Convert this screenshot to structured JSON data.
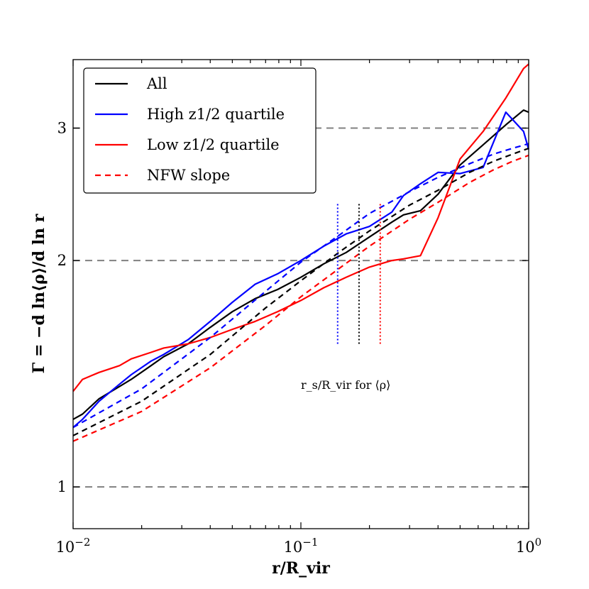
{
  "chart_data": {
    "type": "line",
    "xscale": "log",
    "yscale": "log",
    "xlim": [
      0.01,
      1.0
    ],
    "ylim": [
      0.88,
      3.7
    ],
    "xlabel": "r/R_vir",
    "ylabel": "Γ = −d ln⟨ρ⟩/d ln r",
    "x_ticks": [
      {
        "value": 0.01,
        "base": "10",
        "exp": "−2"
      },
      {
        "value": 0.1,
        "base": "10",
        "exp": "−1"
      },
      {
        "value": 1.0,
        "base": "10",
        "exp": "0"
      }
    ],
    "y_ticks": [
      {
        "value": 1,
        "label": "1"
      },
      {
        "value": 2,
        "label": "2"
      },
      {
        "value": 3,
        "label": "3"
      }
    ],
    "reference_lines_y": [
      1,
      2,
      3
    ],
    "legend": {
      "placement": "top-left",
      "entries": [
        {
          "label": "All",
          "series": "all"
        },
        {
          "label": "High z1/2 quartile",
          "series": "high"
        },
        {
          "label": "Low z1/2 quartile",
          "series": "low"
        },
        {
          "label": "NFW slope",
          "series": "nfw"
        }
      ]
    },
    "series": [
      {
        "name": "All",
        "color": "#000000",
        "style": "solid",
        "x": [
          0.01,
          0.011,
          0.013,
          0.016,
          0.018,
          0.022,
          0.025,
          0.032,
          0.04,
          0.05,
          0.063,
          0.079,
          0.1,
          0.126,
          0.158,
          0.2,
          0.251,
          0.282,
          0.335,
          0.4,
          0.5,
          0.631,
          0.794,
          0.95,
          1.0
        ],
        "y": [
          1.23,
          1.25,
          1.31,
          1.36,
          1.39,
          1.45,
          1.49,
          1.55,
          1.63,
          1.71,
          1.78,
          1.83,
          1.9,
          1.98,
          2.05,
          2.15,
          2.25,
          2.3,
          2.33,
          2.45,
          2.68,
          2.85,
          3.03,
          3.17,
          3.15
        ]
      },
      {
        "name": "High z1/2 quartile",
        "color": "#0000ff",
        "style": "solid",
        "x": [
          0.01,
          0.011,
          0.013,
          0.016,
          0.018,
          0.022,
          0.025,
          0.032,
          0.04,
          0.05,
          0.063,
          0.079,
          0.1,
          0.126,
          0.158,
          0.2,
          0.251,
          0.282,
          0.335,
          0.4,
          0.5,
          0.631,
          0.794,
          0.95,
          1.0
        ],
        "y": [
          1.2,
          1.23,
          1.3,
          1.37,
          1.41,
          1.47,
          1.5,
          1.57,
          1.66,
          1.76,
          1.86,
          1.92,
          2.0,
          2.09,
          2.17,
          2.22,
          2.32,
          2.44,
          2.53,
          2.62,
          2.61,
          2.66,
          3.15,
          2.97,
          2.81
        ]
      },
      {
        "name": "Low z1/2 quartile",
        "color": "#ff0000",
        "style": "solid",
        "x": [
          0.01,
          0.011,
          0.013,
          0.016,
          0.018,
          0.022,
          0.025,
          0.032,
          0.04,
          0.05,
          0.063,
          0.079,
          0.1,
          0.126,
          0.158,
          0.2,
          0.251,
          0.282,
          0.335,
          0.4,
          0.5,
          0.631,
          0.794,
          0.95,
          1.0
        ],
        "y": [
          1.34,
          1.39,
          1.42,
          1.45,
          1.48,
          1.51,
          1.53,
          1.55,
          1.58,
          1.62,
          1.66,
          1.71,
          1.77,
          1.84,
          1.9,
          1.96,
          2.0,
          2.01,
          2.03,
          2.28,
          2.73,
          2.97,
          3.29,
          3.6,
          3.65
        ]
      },
      {
        "name": "NFW slope (high)",
        "color": "#0000ff",
        "style": "dashed",
        "x": [
          0.01,
          0.02,
          0.04,
          0.07,
          0.1,
          0.15,
          0.2,
          0.3,
          0.4,
          0.55,
          0.7,
          0.85,
          1.0
        ],
        "y": [
          1.2,
          1.35,
          1.58,
          1.82,
          1.99,
          2.17,
          2.31,
          2.47,
          2.58,
          2.69,
          2.77,
          2.82,
          2.86
        ]
      },
      {
        "name": "NFW slope (all)",
        "color": "#000000",
        "style": "dashed",
        "x": [
          0.01,
          0.02,
          0.04,
          0.07,
          0.1,
          0.15,
          0.2,
          0.3,
          0.4,
          0.55,
          0.7,
          0.85,
          1.0
        ],
        "y": [
          1.17,
          1.3,
          1.5,
          1.73,
          1.88,
          2.06,
          2.19,
          2.37,
          2.48,
          2.62,
          2.71,
          2.77,
          2.82
        ]
      },
      {
        "name": "NFW slope (low)",
        "color": "#ff0000",
        "style": "dashed",
        "x": [
          0.01,
          0.02,
          0.04,
          0.07,
          0.1,
          0.15,
          0.2,
          0.3,
          0.4,
          0.55,
          0.7,
          0.85,
          1.0
        ],
        "y": [
          1.15,
          1.26,
          1.44,
          1.64,
          1.79,
          1.96,
          2.09,
          2.27,
          2.39,
          2.54,
          2.64,
          2.71,
          2.76
        ]
      }
    ],
    "vertical_markers": [
      {
        "x": 0.145,
        "color": "#0000ff",
        "y_range": [
          1.55,
          2.39
        ]
      },
      {
        "x": 0.18,
        "color": "#000000",
        "y_range": [
          1.55,
          2.39
        ]
      },
      {
        "x": 0.223,
        "color": "#ff0000",
        "y_range": [
          1.55,
          2.39
        ]
      }
    ],
    "annotation": {
      "text": "r_s/R_vir for ⟨ρ⟩",
      "x": 0.175,
      "y": 1.42
    }
  }
}
